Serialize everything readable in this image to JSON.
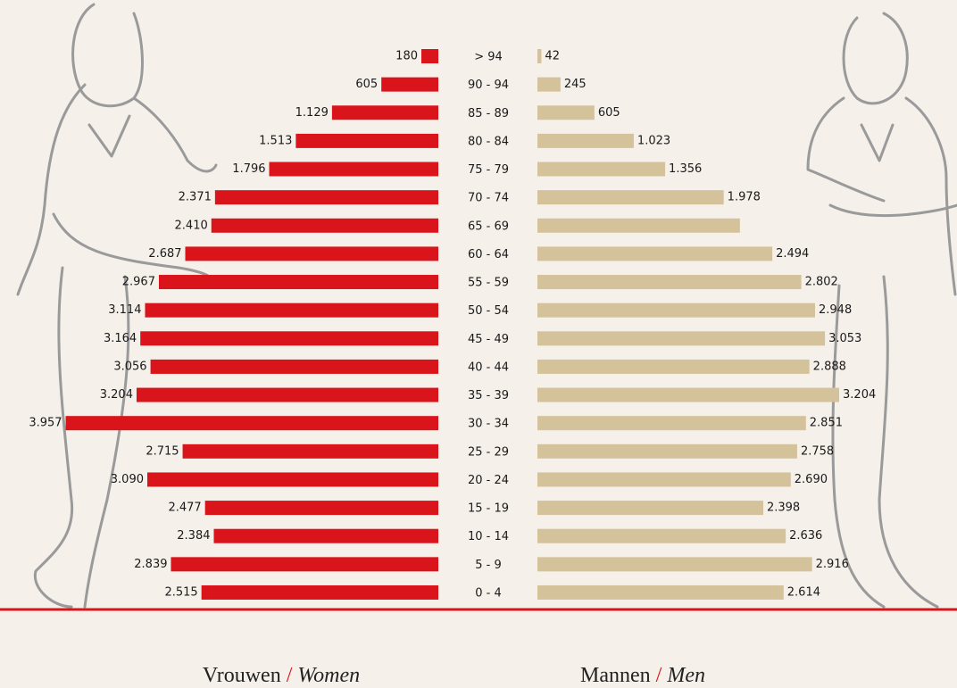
{
  "chart_data": {
    "type": "pyramid",
    "categories": [
      "> 94",
      "90 - 94",
      "85 - 89",
      "80 - 84",
      "75 - 79",
      "70 - 74",
      "65 - 69",
      "60 - 64",
      "55 - 59",
      "50 - 54",
      "45 - 49",
      "40 - 44",
      "35 - 39",
      "30 - 34",
      "25 - 29",
      "20 - 24",
      "15 - 19",
      "10 - 14",
      "5 - 9",
      "0 - 4"
    ],
    "legend_separator": "/",
    "series": [
      {
        "name": "Vrouwen",
        "name_en": "Women",
        "color": "#d9141b",
        "side": "left",
        "values": [
          180,
          605,
          1129,
          1513,
          1796,
          2371,
          2410,
          2687,
          2967,
          3114,
          3164,
          3056,
          3204,
          3957,
          2715,
          3090,
          2477,
          2384,
          2839,
          2515
        ],
        "value_labels": [
          "180",
          "605",
          "1.129",
          "1.513",
          "1.796",
          "2.371",
          "2.410",
          "2.687",
          "2.967",
          "3.114",
          "3.164",
          "3.056",
          "3.204",
          "3.957",
          "2.715",
          "3.090",
          "2.477",
          "2.384",
          "2.839",
          "2.515"
        ]
      },
      {
        "name": "Mannen",
        "name_en": "Men",
        "color": "#d4c29b",
        "side": "right",
        "values": [
          42,
          245,
          605,
          1023,
          1356,
          1978,
          2150,
          2494,
          2802,
          2948,
          3053,
          2888,
          3204,
          2851,
          2758,
          2690,
          2398,
          2636,
          2916,
          2614
        ],
        "value_labels": [
          "42",
          "245",
          "605",
          "1.023",
          "1.356",
          "1.978",
          null,
          "2.494",
          "2.802",
          "2.948",
          "3.053",
          "2.888",
          "3.204",
          "2.851",
          "2.758",
          "2.690",
          "2.398",
          "2.636",
          "2.916",
          "2.614"
        ]
      }
    ]
  }
}
